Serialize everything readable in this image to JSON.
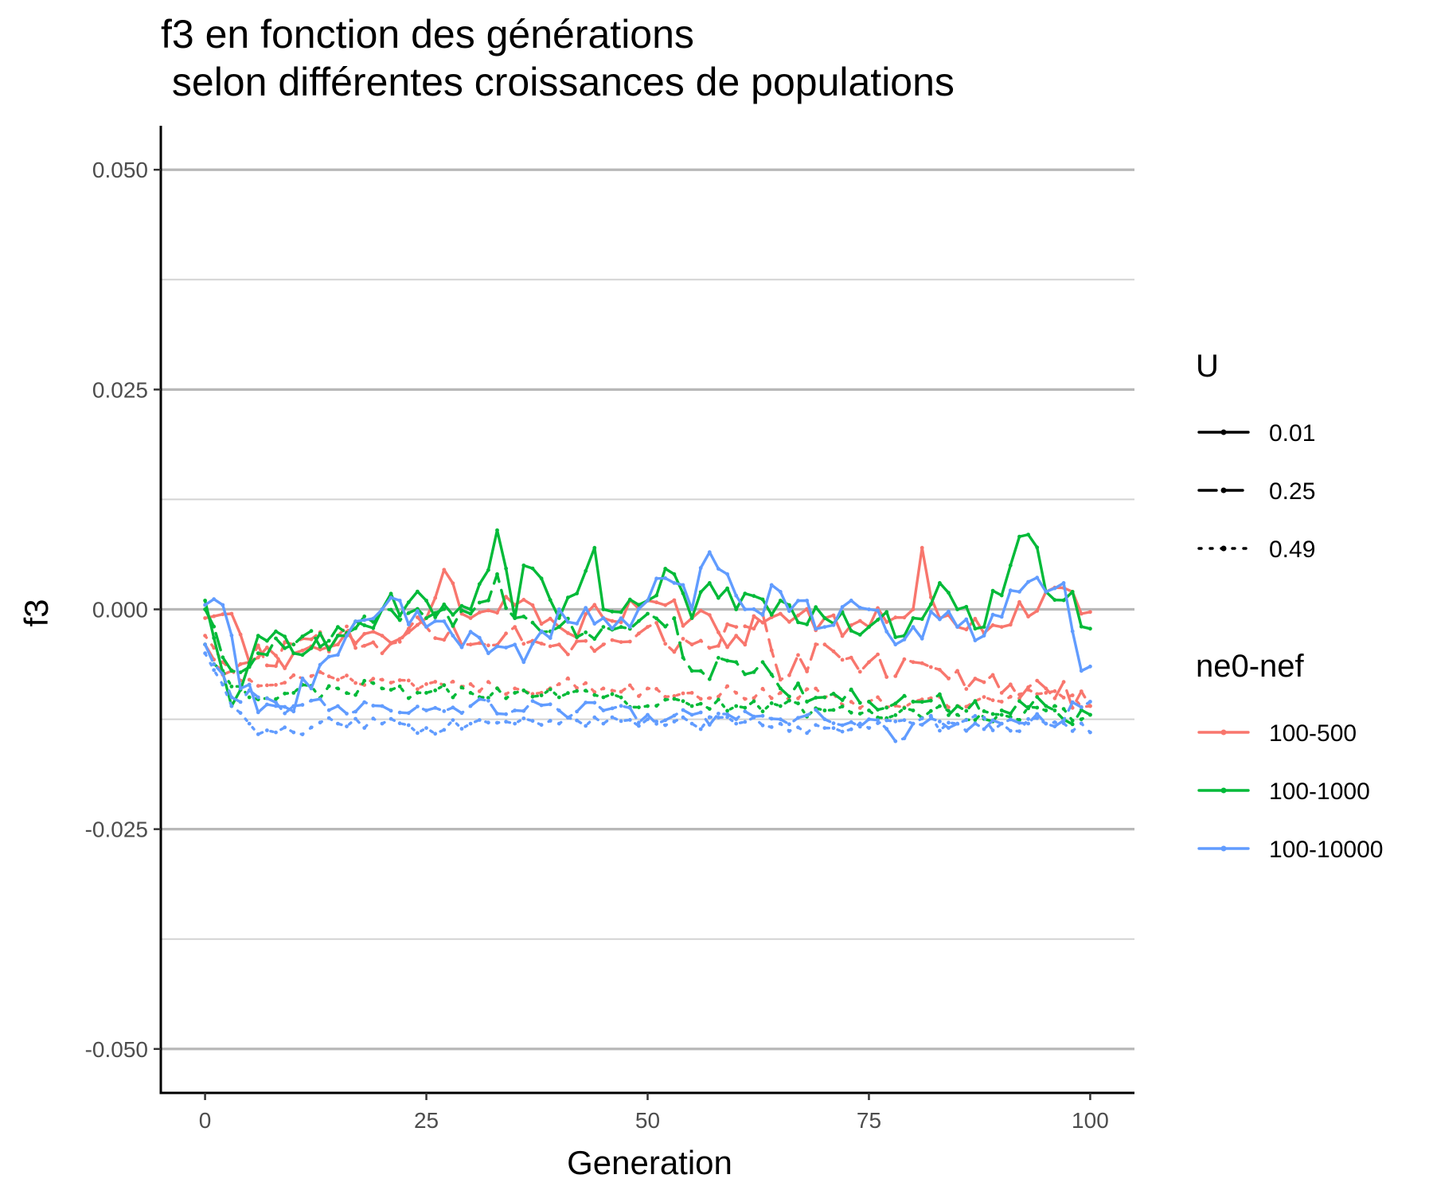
{
  "chart_data": {
    "type": "line",
    "title_lines": [
      "f3 en fonction des générations",
      " selon différentes croissances de populations"
    ],
    "xlabel": "Generation",
    "ylabel": "f3",
    "xlim": [
      -5,
      105
    ],
    "ylim": [
      -0.055,
      0.055
    ],
    "x_ticks": [
      0,
      25,
      50,
      75,
      100
    ],
    "x_tick_labels": [
      "0",
      "25",
      "50",
      "75",
      "100"
    ],
    "y_ticks": [
      0.05,
      0.025,
      0,
      -0.025,
      -0.05
    ],
    "y_tick_labels": [
      "0.050",
      "0.025",
      "0.000",
      "-0.025",
      "-0.050"
    ],
    "y_minor_ticks": [
      0.0375,
      0.0125,
      -0.0125,
      -0.0375
    ],
    "grid": "horizontal",
    "legend_placement": "right",
    "colors": {
      "100-500": "#F8766D",
      "100-1000": "#00BA38",
      "100-10000": "#619CFF"
    },
    "legends": [
      {
        "title": "U",
        "entries": [
          {
            "label": "0.01",
            "linetype": "solid"
          },
          {
            "label": "0.25",
            "linetype": "dashed"
          },
          {
            "label": "0.49",
            "linetype": "dotted"
          }
        ]
      },
      {
        "title": "ne0-nef",
        "entries": [
          {
            "label": "100-500",
            "color": "#F8766D"
          },
          {
            "label": "100-1000",
            "color": "#00BA38"
          },
          {
            "label": "100-10000",
            "color": "#619CFF"
          }
        ]
      }
    ],
    "series": [
      {
        "ne": "100-500",
        "U": "0.01",
        "linetype": "solid",
        "color": "#F8766D",
        "anchors": [
          [
            0,
            -0.001
          ],
          [
            3,
            -0.0005
          ],
          [
            5,
            -0.006
          ],
          [
            10,
            -0.005
          ],
          [
            15,
            -0.004
          ],
          [
            20,
            -0.003
          ],
          [
            25,
            -0.001
          ],
          [
            27,
            0.0045
          ],
          [
            30,
            -0.001
          ],
          [
            35,
            0.0005
          ],
          [
            40,
            -0.002
          ],
          [
            45,
            -0.001
          ],
          [
            50,
            0.001
          ],
          [
            55,
            -0.001
          ],
          [
            60,
            -0.003
          ],
          [
            65,
            -0.0005
          ],
          [
            70,
            -0.001
          ],
          [
            75,
            -0.002
          ],
          [
            80,
            0.0
          ],
          [
            81,
            0.007
          ],
          [
            83,
            -0.001
          ],
          [
            85,
            -0.002
          ],
          [
            90,
            -0.002
          ],
          [
            95,
            0.002
          ],
          [
            98,
            0.002
          ],
          [
            100,
            -0.0003
          ]
        ],
        "noise": 0.0018,
        "seed": 11
      },
      {
        "ne": "100-500",
        "U": "0.25",
        "linetype": "dashed",
        "color": "#F8766D",
        "anchors": [
          [
            0,
            -0.004
          ],
          [
            3,
            -0.007
          ],
          [
            5,
            -0.006
          ],
          [
            10,
            -0.004
          ],
          [
            15,
            -0.003
          ],
          [
            20,
            -0.005
          ],
          [
            25,
            -0.002
          ],
          [
            30,
            -0.004
          ],
          [
            35,
            -0.002
          ],
          [
            40,
            -0.004
          ],
          [
            45,
            -0.004
          ],
          [
            50,
            -0.002
          ],
          [
            55,
            -0.004
          ],
          [
            60,
            -0.002
          ],
          [
            63,
            -0.0005
          ],
          [
            65,
            -0.008
          ],
          [
            70,
            -0.004
          ],
          [
            75,
            -0.006
          ],
          [
            80,
            -0.006
          ],
          [
            85,
            -0.007
          ],
          [
            90,
            -0.0095
          ],
          [
            95,
            -0.009
          ],
          [
            100,
            -0.011
          ]
        ],
        "noise": 0.0017,
        "seed": 12
      },
      {
        "ne": "100-500",
        "U": "0.49",
        "linetype": "dotted",
        "color": "#F8766D",
        "anchors": [
          [
            0,
            -0.003
          ],
          [
            2,
            -0.006
          ],
          [
            5,
            -0.008
          ],
          [
            10,
            -0.0075
          ],
          [
            15,
            -0.008
          ],
          [
            20,
            -0.008
          ],
          [
            25,
            -0.0085
          ],
          [
            30,
            -0.0085
          ],
          [
            35,
            -0.009
          ],
          [
            40,
            -0.0085
          ],
          [
            45,
            -0.009
          ],
          [
            50,
            -0.009
          ],
          [
            55,
            -0.0095
          ],
          [
            60,
            -0.0095
          ],
          [
            65,
            -0.0095
          ],
          [
            70,
            -0.01
          ],
          [
            75,
            -0.0105
          ],
          [
            80,
            -0.0105
          ],
          [
            85,
            -0.011
          ],
          [
            90,
            -0.0105
          ],
          [
            95,
            -0.0095
          ],
          [
            100,
            -0.011
          ]
        ],
        "noise": 0.0009,
        "seed": 13
      },
      {
        "ne": "100-1000",
        "U": "0.01",
        "linetype": "solid",
        "color": "#00BA38",
        "anchors": [
          [
            0,
            0.001
          ],
          [
            3,
            -0.011
          ],
          [
            6,
            -0.003
          ],
          [
            10,
            -0.005
          ],
          [
            15,
            -0.003
          ],
          [
            20,
            0.0
          ],
          [
            25,
            0.001
          ],
          [
            30,
            0.0
          ],
          [
            33,
            0.009
          ],
          [
            35,
            -0.001
          ],
          [
            36,
            0.005
          ],
          [
            40,
            -0.001
          ],
          [
            44,
            0.007
          ],
          [
            45,
            0.0
          ],
          [
            50,
            0.001
          ],
          [
            53,
            0.004
          ],
          [
            55,
            -0.001
          ],
          [
            57,
            0.003
          ],
          [
            60,
            0.0
          ],
          [
            65,
            0.001
          ],
          [
            70,
            -0.001
          ],
          [
            75,
            -0.002
          ],
          [
            80,
            -0.001
          ],
          [
            83,
            0.003
          ],
          [
            85,
            0.0
          ],
          [
            88,
            -0.002
          ],
          [
            91,
            0.005
          ],
          [
            93,
            0.0085
          ],
          [
            95,
            0.002
          ],
          [
            98,
            0.002
          ],
          [
            100,
            -0.0022
          ]
        ],
        "noise": 0.0019,
        "seed": 21
      },
      {
        "ne": "100-1000",
        "U": "0.25",
        "linetype": "dashed",
        "color": "#00BA38",
        "anchors": [
          [
            0,
            0.0
          ],
          [
            3,
            -0.007
          ],
          [
            6,
            -0.005
          ],
          [
            10,
            -0.004
          ],
          [
            15,
            -0.002
          ],
          [
            20,
            0.0
          ],
          [
            25,
            -0.001
          ],
          [
            30,
            -0.0005
          ],
          [
            33,
            0.004
          ],
          [
            35,
            -0.001
          ],
          [
            40,
            -0.002
          ],
          [
            45,
            -0.002
          ],
          [
            50,
            -0.0005
          ],
          [
            53,
            -0.001
          ],
          [
            55,
            -0.007
          ],
          [
            60,
            -0.006
          ],
          [
            63,
            -0.006
          ],
          [
            65,
            -0.009
          ],
          [
            70,
            -0.01
          ],
          [
            75,
            -0.0105
          ],
          [
            80,
            -0.0105
          ],
          [
            85,
            -0.011
          ],
          [
            90,
            -0.0115
          ],
          [
            95,
            -0.011
          ],
          [
            100,
            -0.012
          ]
        ],
        "noise": 0.0015,
        "seed": 22
      },
      {
        "ne": "100-1000",
        "U": "0.49",
        "linetype": "dotted",
        "color": "#00BA38",
        "anchors": [
          [
            0,
            -0.004
          ],
          [
            2,
            -0.007
          ],
          [
            5,
            -0.01
          ],
          [
            10,
            -0.0095
          ],
          [
            15,
            -0.009
          ],
          [
            20,
            -0.009
          ],
          [
            25,
            -0.0095
          ],
          [
            30,
            -0.0095
          ],
          [
            35,
            -0.0095
          ],
          [
            40,
            -0.01
          ],
          [
            45,
            -0.01
          ],
          [
            50,
            -0.011
          ],
          [
            55,
            -0.011
          ],
          [
            60,
            -0.011
          ],
          [
            65,
            -0.011
          ],
          [
            70,
            -0.0115
          ],
          [
            75,
            -0.0115
          ],
          [
            80,
            -0.0115
          ],
          [
            85,
            -0.012
          ],
          [
            90,
            -0.012
          ],
          [
            95,
            -0.0115
          ],
          [
            100,
            -0.012
          ]
        ],
        "noise": 0.0009,
        "seed": 23
      },
      {
        "ne": "100-10000",
        "U": "0.01",
        "linetype": "solid",
        "color": "#619CFF",
        "anchors": [
          [
            0,
            0.0005
          ],
          [
            2,
            0.0005
          ],
          [
            4,
            -0.009
          ],
          [
            8,
            -0.011
          ],
          [
            12,
            -0.009
          ],
          [
            16,
            -0.003
          ],
          [
            20,
            0.0
          ],
          [
            22,
            0.001
          ],
          [
            25,
            -0.002
          ],
          [
            28,
            -0.003
          ],
          [
            32,
            -0.005
          ],
          [
            36,
            -0.006
          ],
          [
            40,
            0.0
          ],
          [
            45,
            -0.001
          ],
          [
            48,
            -0.002
          ],
          [
            50,
            0.001
          ],
          [
            53,
            0.003
          ],
          [
            55,
            0.0
          ],
          [
            57,
            0.0065
          ],
          [
            59,
            0.004
          ],
          [
            61,
            0.0
          ],
          [
            65,
            0.002
          ],
          [
            68,
            0.001
          ],
          [
            70,
            -0.002
          ],
          [
            75,
            0.0
          ],
          [
            78,
            -0.004
          ],
          [
            80,
            -0.002
          ],
          [
            85,
            -0.002
          ],
          [
            88,
            -0.003
          ],
          [
            92,
            0.002
          ],
          [
            95,
            0.002
          ],
          [
            97,
            0.003
          ],
          [
            99,
            -0.007
          ],
          [
            100,
            -0.0065
          ]
        ],
        "noise": 0.0019,
        "seed": 31
      },
      {
        "ne": "100-10000",
        "U": "0.25",
        "linetype": "dashed",
        "color": "#619CFF",
        "anchors": [
          [
            0,
            -0.004
          ],
          [
            3,
            -0.01
          ],
          [
            6,
            -0.01
          ],
          [
            10,
            -0.011
          ],
          [
            15,
            -0.011
          ],
          [
            20,
            -0.011
          ],
          [
            25,
            -0.0115
          ],
          [
            30,
            -0.011
          ],
          [
            35,
            -0.0115
          ],
          [
            40,
            -0.0115
          ],
          [
            45,
            -0.0115
          ],
          [
            50,
            -0.012
          ],
          [
            55,
            -0.012
          ],
          [
            60,
            -0.0125
          ],
          [
            65,
            -0.0125
          ],
          [
            70,
            -0.0125
          ],
          [
            75,
            -0.0125
          ],
          [
            78,
            -0.015
          ],
          [
            80,
            -0.013
          ],
          [
            85,
            -0.013
          ],
          [
            90,
            -0.013
          ],
          [
            95,
            -0.013
          ],
          [
            100,
            -0.0105
          ]
        ],
        "noise": 0.0011,
        "seed": 32
      },
      {
        "ne": "100-10000",
        "U": "0.49",
        "linetype": "dotted",
        "color": "#619CFF",
        "anchors": [
          [
            0,
            -0.005
          ],
          [
            3,
            -0.011
          ],
          [
            5,
            -0.013
          ],
          [
            8,
            -0.014
          ],
          [
            10,
            -0.014
          ],
          [
            15,
            -0.013
          ],
          [
            20,
            -0.013
          ],
          [
            25,
            -0.0135
          ],
          [
            30,
            -0.013
          ],
          [
            35,
            -0.013
          ],
          [
            40,
            -0.013
          ],
          [
            45,
            -0.013
          ],
          [
            50,
            -0.0125
          ],
          [
            55,
            -0.013
          ],
          [
            60,
            -0.013
          ],
          [
            65,
            -0.013
          ],
          [
            70,
            -0.0135
          ],
          [
            75,
            -0.0135
          ],
          [
            80,
            -0.013
          ],
          [
            85,
            -0.013
          ],
          [
            90,
            -0.013
          ],
          [
            95,
            -0.013
          ],
          [
            100,
            -0.014
          ]
        ],
        "noise": 0.0009,
        "seed": 33
      }
    ]
  }
}
